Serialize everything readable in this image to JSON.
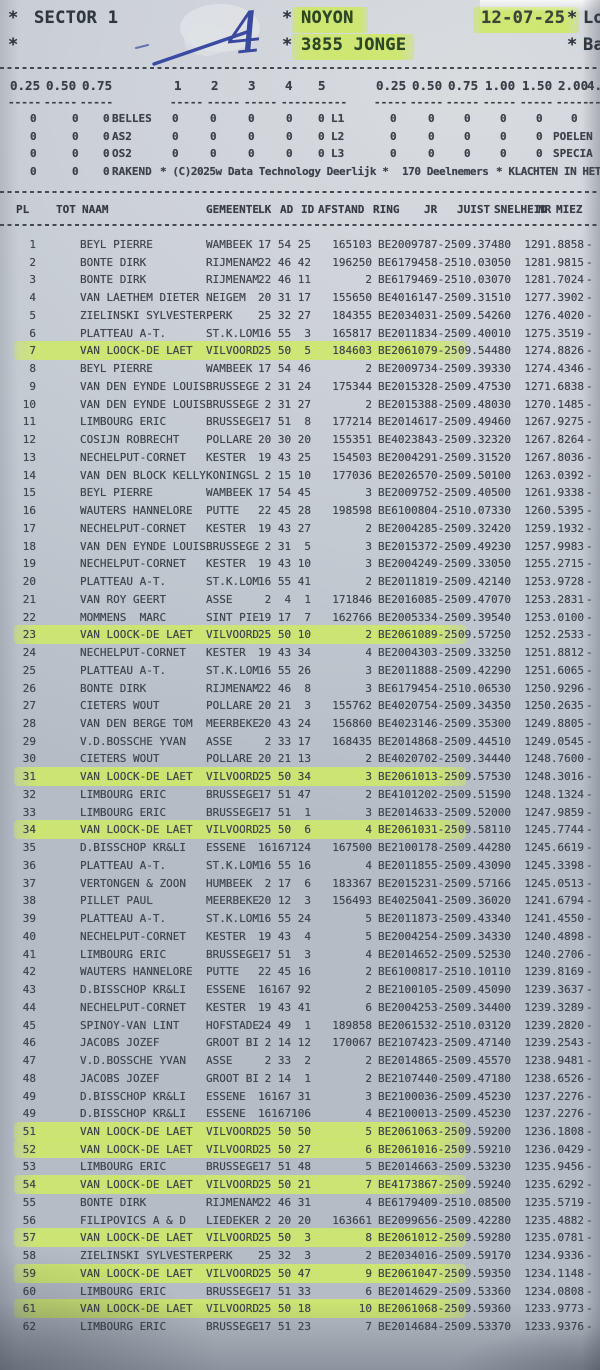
{
  "colors": {
    "highlighter": "#cde86a",
    "ink": "#41464e",
    "paper": "#c9ced6",
    "pen_ink": "#3a49a0"
  },
  "title": {
    "star": "*",
    "sector": "SECTOR 1",
    "handwritten_mark": "4",
    "race_name": "NOYON",
    "bird_count_line": "3855 JONGE",
    "date": "12-07-25",
    "right_cut_line1": "Lo",
    "right_cut_line2": "Ba"
  },
  "points_row": [
    "0.25",
    "0.50",
    "0.75",
    "1",
    "2",
    "3",
    "4",
    "5",
    "0.25",
    "0.50",
    "0.75",
    "1.00",
    "1.50",
    "2.00",
    "4."
  ],
  "dash_group": "-----",
  "dash_group_short": "--",
  "stats": {
    "lines": [
      [
        "0",
        "0",
        "0",
        "BELLES",
        "0",
        "0",
        "0",
        "0",
        "0",
        "L1",
        "0",
        "0",
        "0",
        "0",
        "0",
        "0"
      ],
      [
        "0",
        "0",
        "0",
        "AS2",
        "0",
        "0",
        "0",
        "0",
        "0",
        "L2",
        "0",
        "0",
        "0",
        "0",
        "0",
        "POELEN"
      ],
      [
        "0",
        "0",
        "0",
        "OS2",
        "0",
        "0",
        "0",
        "0",
        "0",
        "L3",
        "0",
        "0",
        "0",
        "0",
        "0",
        "SPECIA"
      ],
      [
        "0",
        "0",
        "0",
        "RAKEND",
        "* (C)2025w Data Technology Deerlijk *",
        "170 Deelnemers",
        "* KLACHTEN IN HET LO"
      ]
    ]
  },
  "table": {
    "headers": [
      "PL",
      "TOT",
      "NAAM",
      "GEMEENTE",
      "LK",
      "AD",
      "ID",
      "AFSTAND",
      "RING",
      "JR",
      "JUIST",
      "SNELHEID",
      "NR",
      "MIEZ"
    ],
    "miez": "-",
    "rows": [
      [
        "1",
        "BEYL PIERRE",
        "WAMBEEK",
        "17 54 25",
        "165103",
        "BE2009787-25",
        "09.37480",
        "1291.8858",
        0
      ],
      [
        "2",
        "BONTE DIRK",
        "RIJMENAM",
        "22 46 42",
        "196250",
        "BE6179458-25",
        "10.03050",
        "1281.9815",
        0
      ],
      [
        "3",
        "BONTE DIRK",
        "RIJMENAM",
        "22 46 11",
        "2",
        "BE6179469-25",
        "10.03070",
        "1281.7024",
        0
      ],
      [
        "4",
        "VAN LAETHEM DIETER",
        "NEIGEM",
        "20 31 17",
        "155650",
        "BE4016147-25",
        "09.31510",
        "1277.3902",
        0
      ],
      [
        "5",
        "ZIELINSKI SYLVESTER",
        "PERK",
        "25 32 27",
        "184355",
        "BE2034031-25",
        "09.54260",
        "1276.4020",
        0
      ],
      [
        "6",
        "PLATTEAU A-T.",
        "ST.K.LOM",
        "16 55  3",
        "165817",
        "BE2011834-25",
        "09.40010",
        "1275.3519",
        0
      ],
      [
        "7",
        "VAN LOOCK-DE LAET",
        "VILVOORD",
        "25 50  5",
        "184603",
        "BE2061079-25",
        "09.54480",
        "1274.8826",
        1
      ],
      [
        "8",
        "BEYL PIERRE",
        "WAMBEEK",
        "17 54 46",
        "2",
        "BE2009734-25",
        "09.39330",
        "1274.4346",
        0
      ],
      [
        "9",
        "VAN DEN EYNDE LOUIS",
        "BRUSSEGE",
        " 2 31 24",
        "175344",
        "BE2015328-25",
        "09.47530",
        "1271.6838",
        0
      ],
      [
        "10",
        "VAN DEN EYNDE LOUIS",
        "BRUSSEGE",
        " 2 31 27",
        "2",
        "BE2015388-25",
        "09.48030",
        "1270.1485",
        0
      ],
      [
        "11",
        "LIMBOURG ERIC",
        "BRUSSEGE",
        "17 51  8",
        "177214",
        "BE2014617-25",
        "09.49460",
        "1267.9275",
        0
      ],
      [
        "12",
        "COSIJN ROBRECHT",
        "POLLARE",
        "20 30 20",
        "155351",
        "BE4023843-25",
        "09.32320",
        "1267.8264",
        0
      ],
      [
        "13",
        "NECHELPUT-CORNET",
        "KESTER",
        "19 43 25",
        "154503",
        "BE2004291-25",
        "09.31520",
        "1267.8036",
        0
      ],
      [
        "14",
        "VAN DEN BLOCK KELLY",
        "KONINGSL",
        " 2 15 10",
        "177036",
        "BE2026570-25",
        "09.50100",
        "1263.0392",
        0
      ],
      [
        "15",
        "BEYL PIERRE",
        "WAMBEEK",
        "17 54 45",
        "3",
        "BE2009752-25",
        "09.40500",
        "1261.9338",
        0
      ],
      [
        "16",
        "WAUTERS HANNELORE",
        "PUTTE",
        "22 45 28",
        "198598",
        "BE6100804-25",
        "10.07330",
        "1260.5395",
        0
      ],
      [
        "17",
        "NECHELPUT-CORNET",
        "KESTER",
        "19 43 27",
        "2",
        "BE2004285-25",
        "09.32420",
        "1259.1932",
        0
      ],
      [
        "18",
        "VAN DEN EYNDE LOUIS",
        "BRUSSEGE",
        " 2 31  5",
        "3",
        "BE2015372-25",
        "09.49230",
        "1257.9983",
        0
      ],
      [
        "19",
        "NECHELPUT-CORNET",
        "KESTER",
        "19 43 10",
        "3",
        "BE2004249-25",
        "09.33050",
        "1255.2715",
        0
      ],
      [
        "20",
        "PLATTEAU A-T.",
        "ST.K.LOM",
        "16 55 41",
        "2",
        "BE2011819-25",
        "09.42140",
        "1253.9728",
        0
      ],
      [
        "21",
        "VAN ROY GEERT",
        "ASSE",
        " 2  4  1",
        "171846",
        "BE2016085-25",
        "09.47070",
        "1253.2831",
        0
      ],
      [
        "22",
        "MOMMENS  MARC",
        "SINT PIE",
        "19 17  7",
        "162766",
        "BE2005334-25",
        "09.39540",
        "1253.0100",
        0
      ],
      [
        "23",
        "VAN LOOCK-DE LAET",
        "VILVOORD",
        "25 50 10",
        "2",
        "BE2061089-25",
        "09.57250",
        "1252.2533",
        1
      ],
      [
        "24",
        "NECHELPUT-CORNET",
        "KESTER",
        "19 43 34",
        "4",
        "BE2004303-25",
        "09.33250",
        "1251.8812",
        0
      ],
      [
        "25",
        "PLATTEAU A-T.",
        "ST.K.LOM",
        "16 55 26",
        "3",
        "BE2011888-25",
        "09.42290",
        "1251.6065",
        0
      ],
      [
        "26",
        "BONTE DIRK",
        "RIJMENAM",
        "22 46  8",
        "3",
        "BE6179454-25",
        "10.06530",
        "1250.9296",
        0
      ],
      [
        "27",
        "CIETERS WOUT",
        "POLLARE",
        "20 21  3",
        "155762",
        "BE4020754-25",
        "09.34350",
        "1250.2635",
        0
      ],
      [
        "28",
        "VAN DEN BERGE TOM",
        "MEERBEKE",
        "20 43 24",
        "156860",
        "BE4023146-25",
        "09.35300",
        "1249.8805",
        0
      ],
      [
        "29",
        "V.D.BOSSCHE YVAN",
        "ASSE",
        " 2 33 17",
        "168435",
        "BE2014868-25",
        "09.44510",
        "1249.0545",
        0
      ],
      [
        "30",
        "CIETERS WOUT",
        "POLLARE",
        "20 21 13",
        "2",
        "BE4020702-25",
        "09.34440",
        "1248.7600",
        0
      ],
      [
        "31",
        "VAN LOOCK-DE LAET",
        "VILVOORD",
        "25 50 34",
        "3",
        "BE2061013-25",
        "09.57530",
        "1248.3016",
        1
      ],
      [
        "32",
        "LIMBOURG ERIC",
        "BRUSSEGE",
        "17 51 47",
        "2",
        "BE4101202-25",
        "09.51590",
        "1248.1324",
        0
      ],
      [
        "33",
        "LIMBOURG ERIC",
        "BRUSSEGE",
        "17 51  1",
        "3",
        "BE2014633-25",
        "09.52000",
        "1247.9859",
        0
      ],
      [
        "34",
        "VAN LOOCK-DE LAET",
        "VILVOORD",
        "25 50  6",
        "4",
        "BE2061031-25",
        "09.58110",
        "1245.7744",
        1
      ],
      [
        "35",
        "D.BISSCHOP KR&LI",
        "ESSENE",
        "16167124",
        "167500",
        "BE2100178-25",
        "09.44280",
        "1245.6619",
        0
      ],
      [
        "36",
        "PLATTEAU A-T.",
        "ST.K.LOM",
        "16 55 16",
        "4",
        "BE2011855-25",
        "09.43090",
        "1245.3398",
        0
      ],
      [
        "37",
        "VERTONGEN & ZOON",
        "HUMBEEK",
        " 2 17  6",
        "183367",
        "BE2015231-25",
        "09.57166",
        "1245.0513",
        0
      ],
      [
        "38",
        "PILLET PAUL",
        "MEERBEKE",
        "20 12  3",
        "156493",
        "BE4025041-25",
        "09.36020",
        "1241.6794",
        0
      ],
      [
        "39",
        "PLATTEAU A-T.",
        "ST.K.LOM",
        "16 55 24",
        "5",
        "BE2011873-25",
        "09.43340",
        "1241.4550",
        0
      ],
      [
        "40",
        "NECHELPUT-CORNET",
        "KESTER",
        "19 43  4",
        "5",
        "BE2004254-25",
        "09.34330",
        "1240.4898",
        0
      ],
      [
        "41",
        "LIMBOURG ERIC",
        "BRUSSEGE",
        "17 51  3",
        "4",
        "BE2014652-25",
        "09.52530",
        "1240.2706",
        0
      ],
      [
        "42",
        "WAUTERS HANNELORE",
        "PUTTE",
        "22 45 16",
        "2",
        "BE6100817-25",
        "10.10110",
        "1239.8169",
        0
      ],
      [
        "43",
        "D.BISSCHOP KR&LI",
        "ESSENE",
        "16167 92",
        "2",
        "BE2100105-25",
        "09.45090",
        "1239.3637",
        0
      ],
      [
        "44",
        "NECHELPUT-CORNET",
        "KESTER",
        "19 43 41",
        "6",
        "BE2004253-25",
        "09.34400",
        "1239.3289",
        0
      ],
      [
        "45",
        "SPINOY-VAN LINT",
        "HOFSTADE",
        "24 49  1",
        "189858",
        "BE2061532-25",
        "10.03120",
        "1239.2820",
        0
      ],
      [
        "46",
        "JACOBS JOZEF",
        "GROOT BI",
        " 2 14 12",
        "170067",
        "BE2107423-25",
        "09.47140",
        "1239.2543",
        0
      ],
      [
        "47",
        "V.D.BOSSCHE YVAN",
        "ASSE",
        " 2 33  2",
        "2",
        "BE2014865-25",
        "09.45570",
        "1238.9481",
        0
      ],
      [
        "48",
        "JACOBS JOZEF",
        "GROOT BI",
        " 2 14  1",
        "2",
        "BE2107440-25",
        "09.47180",
        "1238.6526",
        0
      ],
      [
        "49",
        "D.BISSCHOP KR&LI",
        "ESSENE",
        "16167 31",
        "3",
        "BE2100036-25",
        "09.45230",
        "1237.2276",
        0
      ],
      [
        "49",
        "D.BISSCHOP KR&LI",
        "ESSENE",
        "16167106",
        "4",
        "BE2100013-25",
        "09.45230",
        "1237.2276",
        0
      ],
      [
        "51",
        "VAN LOOCK-DE LAET",
        "VILVOORD",
        "25 50 50",
        "5",
        "BE2061063-25",
        "09.59200",
        "1236.1808",
        1
      ],
      [
        "52",
        "VAN LOOCK-DE LAET",
        "VILVOORD",
        "25 50 27",
        "6",
        "BE2061016-25",
        "09.59210",
        "1236.0429",
        1
      ],
      [
        "53",
        "LIMBOURG ERIC",
        "BRUSSEGE",
        "17 51 48",
        "5",
        "BE2014663-25",
        "09.53230",
        "1235.9456",
        0
      ],
      [
        "54",
        "VAN LOOCK-DE LAET",
        "VILVOORD",
        "25 50 21",
        "7",
        "BE4173867-25",
        "09.59240",
        "1235.6292",
        1
      ],
      [
        "55",
        "BONTE DIRK",
        "RIJMENAM",
        "22 46 31",
        "4",
        "BE6179409-25",
        "10.08500",
        "1235.5719",
        0
      ],
      [
        "56",
        "FILIPOVICS A & D",
        "LIEDEKER",
        " 2 20 20",
        "163661",
        "BE2099656-25",
        "09.42280",
        "1235.4882",
        0
      ],
      [
        "57",
        "VAN LOOCK-DE LAET",
        "VILVOORD",
        "25 50  3",
        "8",
        "BE2061012-25",
        "09.59280",
        "1235.0781",
        1
      ],
      [
        "58",
        "ZIELINSKI SYLVESTER",
        "PERK",
        "25 32  3",
        "2",
        "BE2034016-25",
        "09.59170",
        "1234.9336",
        0
      ],
      [
        "59",
        "VAN LOOCK-DE LAET",
        "VILVOORD",
        "25 50 47",
        "9",
        "BE2061047-25",
        "09.59350",
        "1234.1148",
        1
      ],
      [
        "60",
        "LIMBOURG ERIC",
        "BRUSSEGE",
        "17 51 33",
        "6",
        "BE2014629-25",
        "09.53360",
        "1234.0808",
        0
      ],
      [
        "61",
        "VAN LOOCK-DE LAET",
        "VILVOORD",
        "25 50 18",
        "10",
        "BE2061068-25",
        "09.59360",
        "1233.9773",
        1
      ],
      [
        "62",
        "LIMBOURG ERIC",
        "BRUSSEGE",
        "17 51 23",
        "7",
        "BE2014684-25",
        "09.53370",
        "1233.9376",
        0
      ]
    ]
  }
}
